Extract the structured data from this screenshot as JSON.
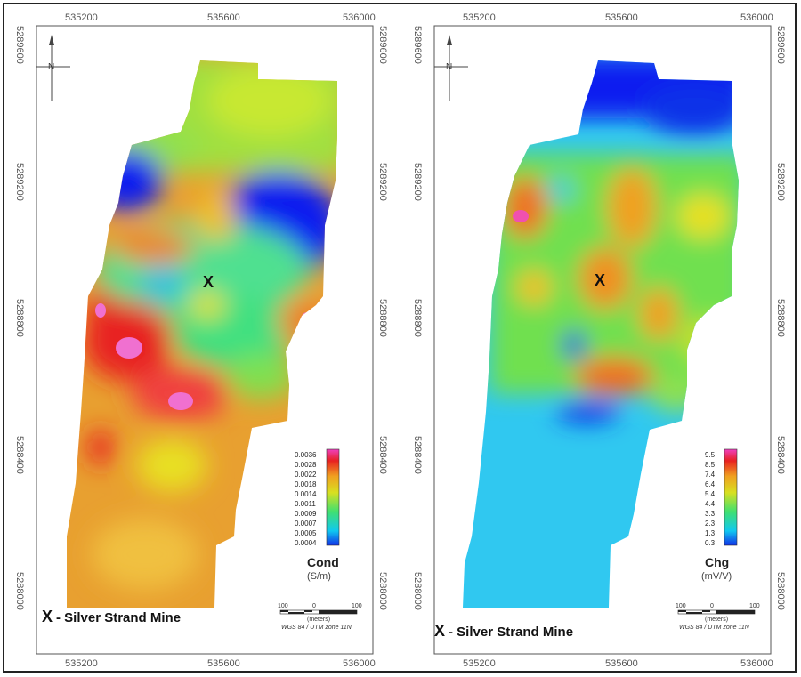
{
  "maps": [
    {
      "id": "cond",
      "legend_title": "Cond",
      "legend_unit": "(S/m)",
      "legend_values": [
        "0.0036",
        "0.0028",
        "0.0022",
        "0.0018",
        "0.0014",
        "0.0011",
        "0.0009",
        "0.0007",
        "0.0005",
        "0.0004"
      ],
      "mine_marker": "X",
      "caption_marker": "X",
      "caption_text": "- Silver Strand Mine"
    },
    {
      "id": "chg",
      "legend_title": "Chg",
      "legend_unit": "(mV/V)",
      "legend_values": [
        "9.5",
        "8.5",
        "7.4",
        "6.4",
        "5.4",
        "4.4",
        "3.3",
        "2.3",
        "1.3",
        "0.3"
      ],
      "mine_marker": "X",
      "caption_marker": "X",
      "caption_text": "- Silver Strand Mine"
    }
  ],
  "x_ticks": [
    "535200",
    "535600",
    "536000"
  ],
  "y_ticks": [
    "5289600",
    "5289200",
    "5288800",
    "5288400",
    "5288000"
  ],
  "north_label": "N",
  "scale_bar": {
    "left": "100",
    "mid": "0",
    "right": "100",
    "unit": "(meters)",
    "projection": "WGS 84 / UTM zone 11N"
  },
  "colors": {
    "blue": "#0a1ef0",
    "cyan": "#10d8f0",
    "green": "#8ee040",
    "yellow": "#e8e020",
    "orange": "#f0a020",
    "red": "#e82020",
    "magenta": "#f040c0"
  }
}
